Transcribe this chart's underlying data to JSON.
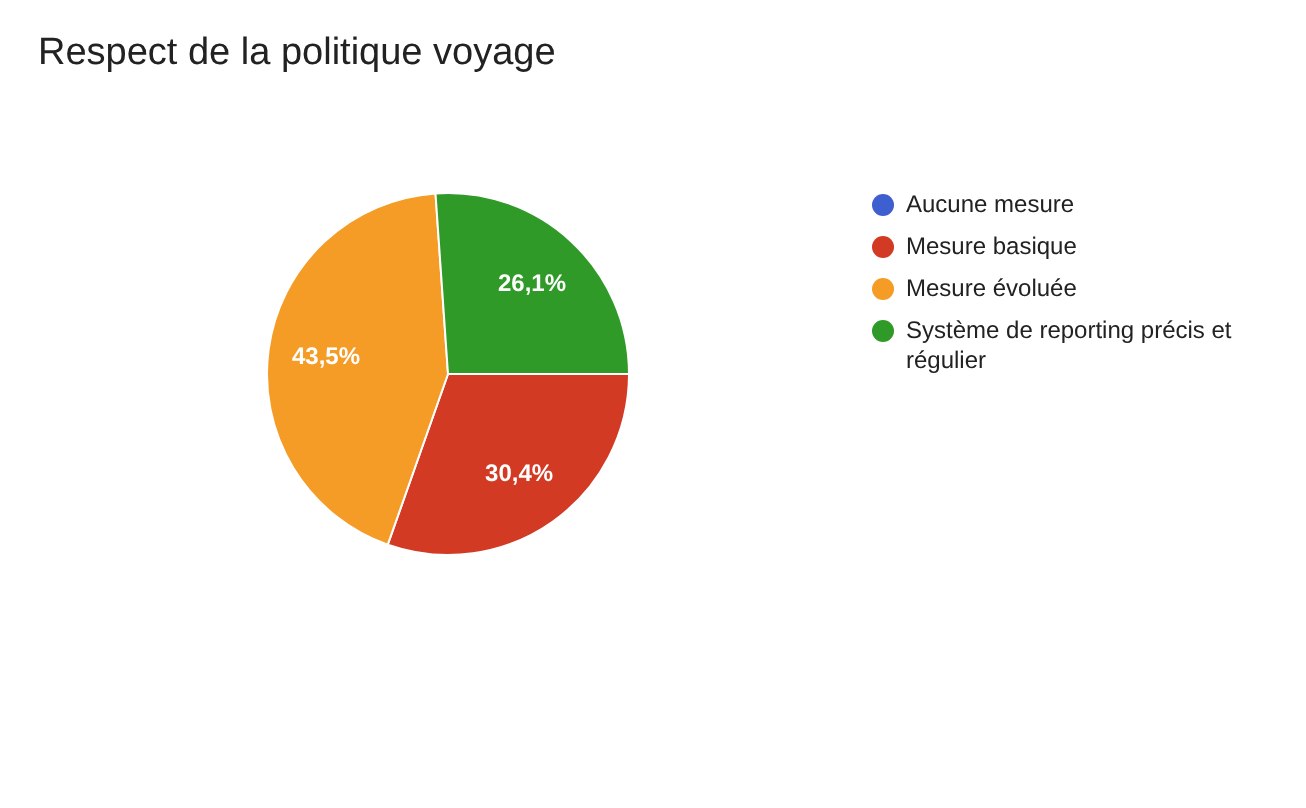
{
  "chart_data": {
    "type": "pie",
    "title": "Respect de la politique voyage",
    "categories": [
      "Aucune mesure",
      "Mesure basique",
      "Mesure évoluée",
      "Système de reporting précis et régulier"
    ],
    "values": [
      0,
      30.4,
      43.5,
      26.1
    ],
    "colors": [
      "#3e5fcf",
      "#d23a24",
      "#f49c26",
      "#2f9a27"
    ],
    "value_labels": [
      null,
      "30,4%",
      "43,5%",
      "26,1%"
    ],
    "legend": "right"
  }
}
